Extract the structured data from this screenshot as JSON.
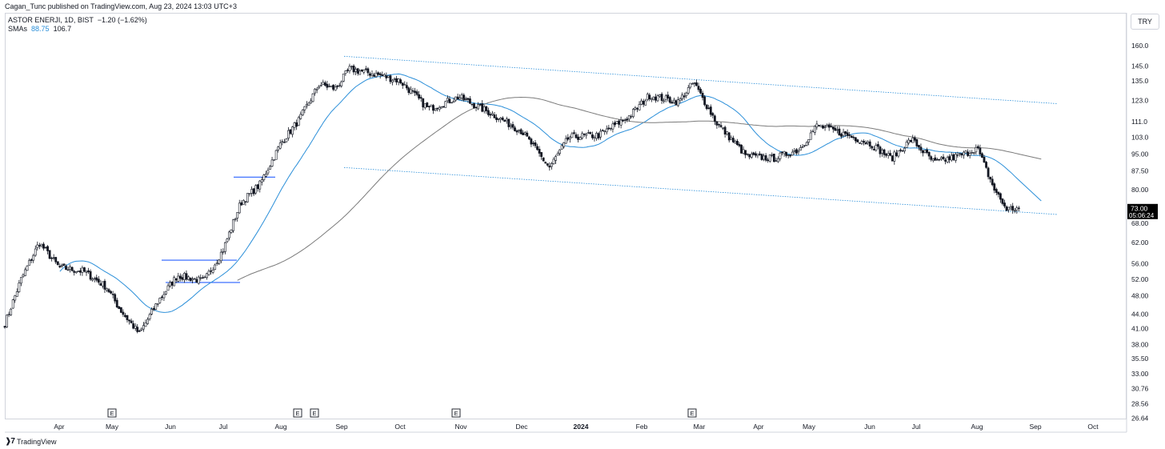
{
  "header": {
    "publish_line": "Cagan_Tunc published on TradingView.com, Aug 23, 2024 13:03 UTC+3"
  },
  "legend": {
    "symbol": "ASTOR ENERJI, 1D, BIST",
    "change": "−1.20 (−1.62%)",
    "sma_label": "SMAs",
    "sma_fast": "88.75",
    "sma_slow": "106.7"
  },
  "currency_button": "TRY",
  "footer": {
    "brand": "TradingView",
    "logo_icon": "tradingview-logo-icon"
  },
  "colors": {
    "up_candle": "#ffffff",
    "down_candle": "#131722",
    "sma_fast": "#2b8fd9",
    "sma_slow": "#7b7b7b",
    "channel": "#2b8fd9",
    "levels": "#2962ff",
    "price_tag": "#000000"
  },
  "chart_data": {
    "type": "candlestick",
    "symbol": "ASTOR ENERJI",
    "interval": "1D",
    "exchange": "BIST",
    "y_scale": "log",
    "ylim": [
      26.64,
      180
    ],
    "y_ticks": [
      "160.0",
      "145.0",
      "135.0",
      "123.0",
      "111.0",
      "103.0",
      "95.00",
      "87.50",
      "80.00",
      "68.00",
      "62.00",
      "56.00",
      "52.00",
      "48.00",
      "44.00",
      "41.00",
      "38.00",
      "35.50",
      "33.00",
      "30.76",
      "28.56",
      "26.64"
    ],
    "x_ticks": [
      "Apr",
      "May",
      "Jun",
      "Jul",
      "Aug",
      "Sep",
      "Oct",
      "Nov",
      "Dec",
      "2024",
      "Feb",
      "Mar",
      "Apr",
      "May",
      "Jun",
      "Jul",
      "Aug",
      "Sep",
      "Oct"
    ],
    "x_tick_bold": "2024",
    "earnings_marker_label": "E",
    "earnings_markers": [
      "May",
      "Aug",
      "Aug",
      "Oct",
      "Feb"
    ],
    "last_price": "73.00",
    "countdown": "05:06:24",
    "grid": false,
    "close_path": [
      {
        "t": "Mar 1",
        "c": 42.0
      },
      {
        "t": "Mar 10",
        "c": 52.0
      },
      {
        "t": "Mar 20",
        "c": 62.0
      },
      {
        "t": "Apr 1",
        "c": 55.0
      },
      {
        "t": "Apr 15",
        "c": 54.0
      },
      {
        "t": "Apr 28",
        "c": 50.0
      },
      {
        "t": "May 5",
        "c": 45.0
      },
      {
        "t": "May 15",
        "c": 40.0
      },
      {
        "t": "May 25",
        "c": 47.0
      },
      {
        "t": "Jun 5",
        "c": 53.0
      },
      {
        "t": "Jun 20",
        "c": 51.5
      },
      {
        "t": "Jul 1",
        "c": 60.0
      },
      {
        "t": "Jul 10",
        "c": 75.0
      },
      {
        "t": "Jul 20",
        "c": 82.0
      },
      {
        "t": "Aug 1",
        "c": 100.0
      },
      {
        "t": "Aug 10",
        "c": 112.0
      },
      {
        "t": "Aug 20",
        "c": 133.0
      },
      {
        "t": "Aug 28",
        "c": 130.0
      },
      {
        "t": "Sep 5",
        "c": 143.0
      },
      {
        "t": "Sep 20",
        "c": 139.0
      },
      {
        "t": "Oct 1",
        "c": 135.0
      },
      {
        "t": "Oct 15",
        "c": 118.0
      },
      {
        "t": "Oct 30",
        "c": 125.0
      },
      {
        "t": "Nov 15",
        "c": 116.0
      },
      {
        "t": "Dec 1",
        "c": 106.0
      },
      {
        "t": "Dec 15",
        "c": 89.0
      },
      {
        "t": "Dec 25",
        "c": 103.0
      },
      {
        "t": "Jan 10",
        "c": 104.0
      },
      {
        "t": "Jan 25",
        "c": 114.0
      },
      {
        "t": "Feb 5",
        "c": 126.0
      },
      {
        "t": "Feb 20",
        "c": 122.0
      },
      {
        "t": "Feb 28",
        "c": 134.0
      },
      {
        "t": "Mar 10",
        "c": 110.0
      },
      {
        "t": "Mar 25",
        "c": 94.0
      },
      {
        "t": "Apr 10",
        "c": 93.0
      },
      {
        "t": "Apr 25",
        "c": 97.0
      },
      {
        "t": "May 5",
        "c": 109.0
      },
      {
        "t": "May 20",
        "c": 104.0
      },
      {
        "t": "Jun 1",
        "c": 100.0
      },
      {
        "t": "Jun 15",
        "c": 93.0
      },
      {
        "t": "Jun 28",
        "c": 102.0
      },
      {
        "t": "Jul 10",
        "c": 91.0
      },
      {
        "t": "Jul 25",
        "c": 95.0
      },
      {
        "t": "Aug 1",
        "c": 98.0
      },
      {
        "t": "Aug 10",
        "c": 80.0
      },
      {
        "t": "Aug 16",
        "c": 73.0
      },
      {
        "t": "Aug 23",
        "c": 73.0
      }
    ]
  }
}
